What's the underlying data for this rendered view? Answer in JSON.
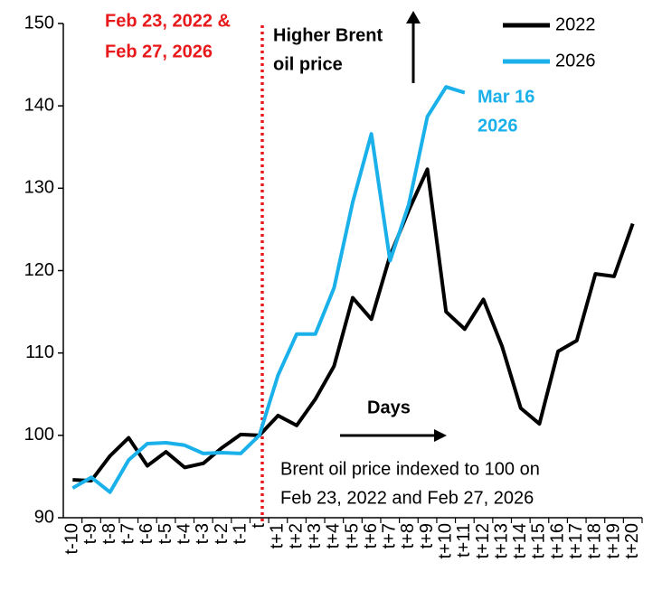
{
  "chart_data": {
    "type": "line",
    "categories": [
      "t-10",
      "t-9",
      "t-8",
      "t-7",
      "t-6",
      "t-5",
      "t-4",
      "t-3",
      "t-2",
      "t-1",
      "t",
      "t+1",
      "t+2",
      "t+3",
      "t+4",
      "t+5",
      "t+6",
      "t+7",
      "t+8",
      "t+9",
      "t+10",
      "t+11",
      "t+12",
      "t+13",
      "t+14",
      "t+15",
      "t+16",
      "t+17",
      "t+18",
      "t+19",
      "t+20"
    ],
    "series": [
      {
        "name": "2022",
        "color": "#000000",
        "values": [
          94.6,
          94.5,
          97.5,
          99.7,
          96.3,
          98.0,
          96.1,
          96.6,
          98.5,
          100.1,
          100,
          102.4,
          101.2,
          104.4,
          108.4,
          116.7,
          114.1,
          121.8,
          127.3,
          132.3,
          115.0,
          112.9,
          116.5,
          110.8,
          103.3,
          101.4,
          110.2,
          111.5,
          119.6,
          119.3,
          125.7
        ]
      },
      {
        "name": "2026",
        "color": "#1ab0ea",
        "values": [
          93.6,
          94.9,
          93.1,
          97.0,
          99.0,
          99.1,
          98.8,
          97.8,
          97.9,
          97.8,
          100,
          107.3,
          112.3,
          112.3,
          117.9,
          128.3,
          136.6,
          121.2,
          128.0,
          138.7,
          142.3,
          141.6,
          null,
          null,
          null,
          null,
          null,
          null,
          null,
          null,
          null
        ]
      }
    ],
    "ylim": [
      90,
      150
    ],
    "yticks": [
      90,
      100,
      110,
      120,
      130,
      140,
      150
    ],
    "legend": "upper right",
    "annotations": {
      "event_date": [
        "Feb 23, 2022 &",
        "Feb 27, 2026"
      ],
      "higher": [
        "Higher Brent",
        "oil price"
      ],
      "latest": [
        "Mar 16",
        "2026"
      ],
      "days": "Days",
      "note": [
        "Brent oil price indexed to 100 on",
        "Feb 23, 2022 and Feb 27, 2026"
      ]
    }
  }
}
